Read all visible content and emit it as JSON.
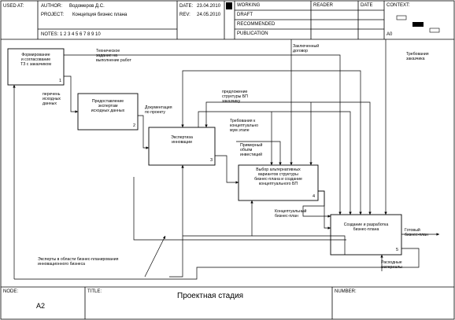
{
  "header": {
    "used_at": "USED AT:",
    "author_label": "AUTHOR:",
    "author": "Водомеров Д.С.",
    "project_label": "PROJECT:",
    "project": "Концепция бизнес плана",
    "notes": "NOTES:  1  2  3  4  5  6  7  8  9  10",
    "date_label": "DATE:",
    "date": "23.04.2010",
    "rev_label": "REV:",
    "rev": "24.05.2010",
    "status": [
      "WORKING",
      "DRAFT",
      "RECOMMENDED",
      "PUBLICATION"
    ],
    "reader": "READER",
    "reader_date": "DATE",
    "context": "CONTEXT:",
    "context_num": "A0"
  },
  "boxes": [
    {
      "id": "1",
      "title": "Формирование\nи согласование\nТЗ с заказчиком"
    },
    {
      "id": "2",
      "title": "Предоставление\nэкспертам\nисходных данных"
    },
    {
      "id": "3",
      "title": "Экспертиза\nинновации"
    },
    {
      "id": "4",
      "title": "Выбор альтернативных\nвариантов структуры\nбизнес-плана и создание\nконцептуального БП"
    },
    {
      "id": "5",
      "title": "Создание и разработка\nбизнес-плана"
    }
  ],
  "arrows": {
    "contract": "Заключенный\nдоговор",
    "customer_req": "Требования\nзаказчика",
    "tech_task": "Техническое\nзадание на\nвыполнение работ",
    "input_data": "перечень\nисходных\nданных",
    "documents": "Документация\nпо проекту",
    "proposal": "предложение\nструктуры БП\nзаказчику",
    "concept_req": "Требования к\nконцептуально\nмум этапе",
    "volume": "Примерный\nобъём\nинвестиций",
    "concept_bp": "Концептуальный\nбизнес-план",
    "ready_bp": "Готовый\nбизнес-план",
    "experts": "Эксперты в области бизнес-планирования\nинновационного бизнеса",
    "materials": "Расходные\nматериалы"
  },
  "footer": {
    "node_label": "NODE:",
    "node": "A2",
    "title_label": "TITLE:",
    "title": "Проектная стадия",
    "number_label": "NUMBER:"
  }
}
